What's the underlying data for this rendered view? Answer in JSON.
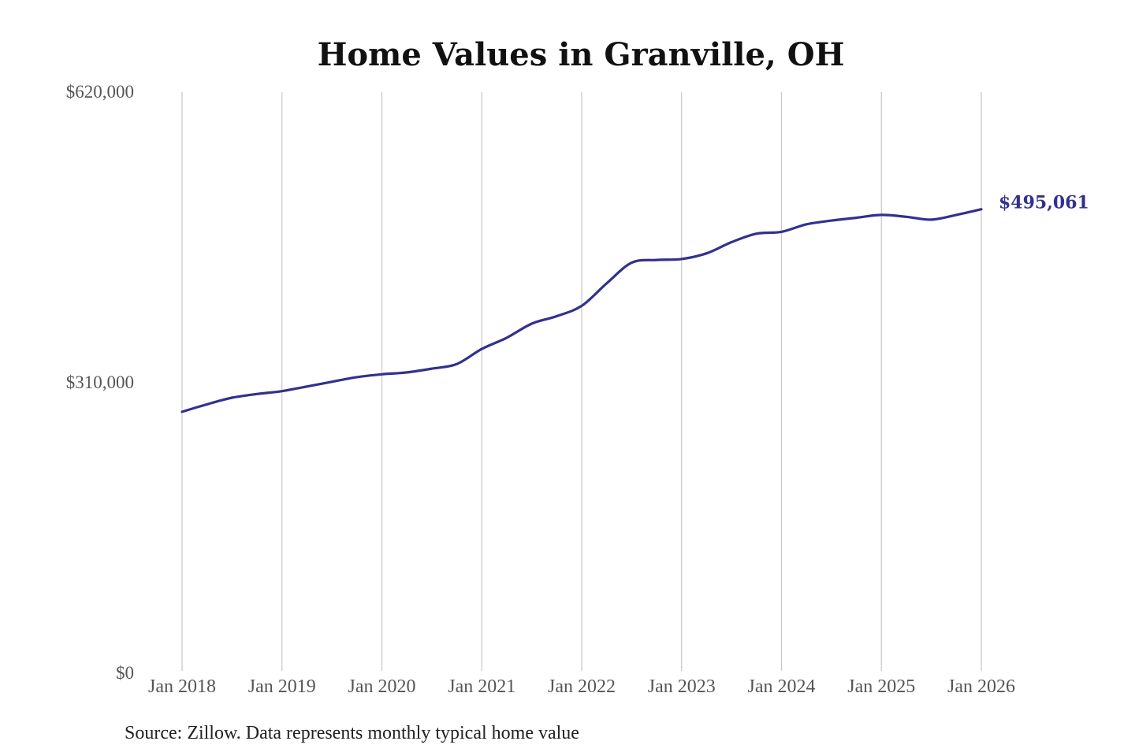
{
  "chart_data": {
    "type": "line",
    "title": "Home Values in Granville, OH",
    "xlabel": "",
    "ylabel": "",
    "ylim": [
      0,
      620000
    ],
    "xlim": [
      "2018-01",
      "2026-01"
    ],
    "grid": "vertical",
    "legend": "none",
    "y_ticks": [
      "$620,000",
      "$310,000",
      "$0"
    ],
    "y_tick_values": [
      620000,
      310000,
      0
    ],
    "x_ticks": [
      "Jan 2018",
      "Jan 2019",
      "Jan 2020",
      "Jan 2021",
      "Jan 2022",
      "Jan 2023",
      "Jan 2024",
      "Jan 2025",
      "Jan 2026"
    ],
    "x_tick_values": [
      "2018-01",
      "2019-01",
      "2020-01",
      "2021-01",
      "2022-01",
      "2023-01",
      "2024-01",
      "2025-01",
      "2026-01"
    ],
    "end_label": "$495,061",
    "line_color": "#33308f",
    "series": [
      {
        "x": [
          "2018-01",
          "2018-04",
          "2018-07",
          "2018-10",
          "2019-01",
          "2019-04",
          "2019-07",
          "2019-10",
          "2020-01",
          "2020-04",
          "2020-07",
          "2020-10",
          "2021-01",
          "2021-04",
          "2021-07",
          "2021-10",
          "2022-01",
          "2022-04",
          "2022-07",
          "2022-10",
          "2023-01",
          "2023-04",
          "2023-07",
          "2023-10",
          "2024-01",
          "2024-04",
          "2024-07",
          "2024-10",
          "2025-01",
          "2025-04",
          "2025-07",
          "2025-10",
          "2026-01"
        ],
        "values": [
          279000,
          287000,
          294000,
          298000,
          301000,
          306000,
          311000,
          316000,
          319000,
          321000,
          325000,
          330000,
          346000,
          358000,
          373000,
          381000,
          392000,
          416000,
          438000,
          441000,
          442000,
          448000,
          460000,
          469000,
          471000,
          479000,
          483000,
          486000,
          489000,
          487000,
          484000,
          489000,
          495061
        ]
      }
    ]
  },
  "footer": {
    "source": "Source: Zillow. Data represents monthly typical home value"
  }
}
